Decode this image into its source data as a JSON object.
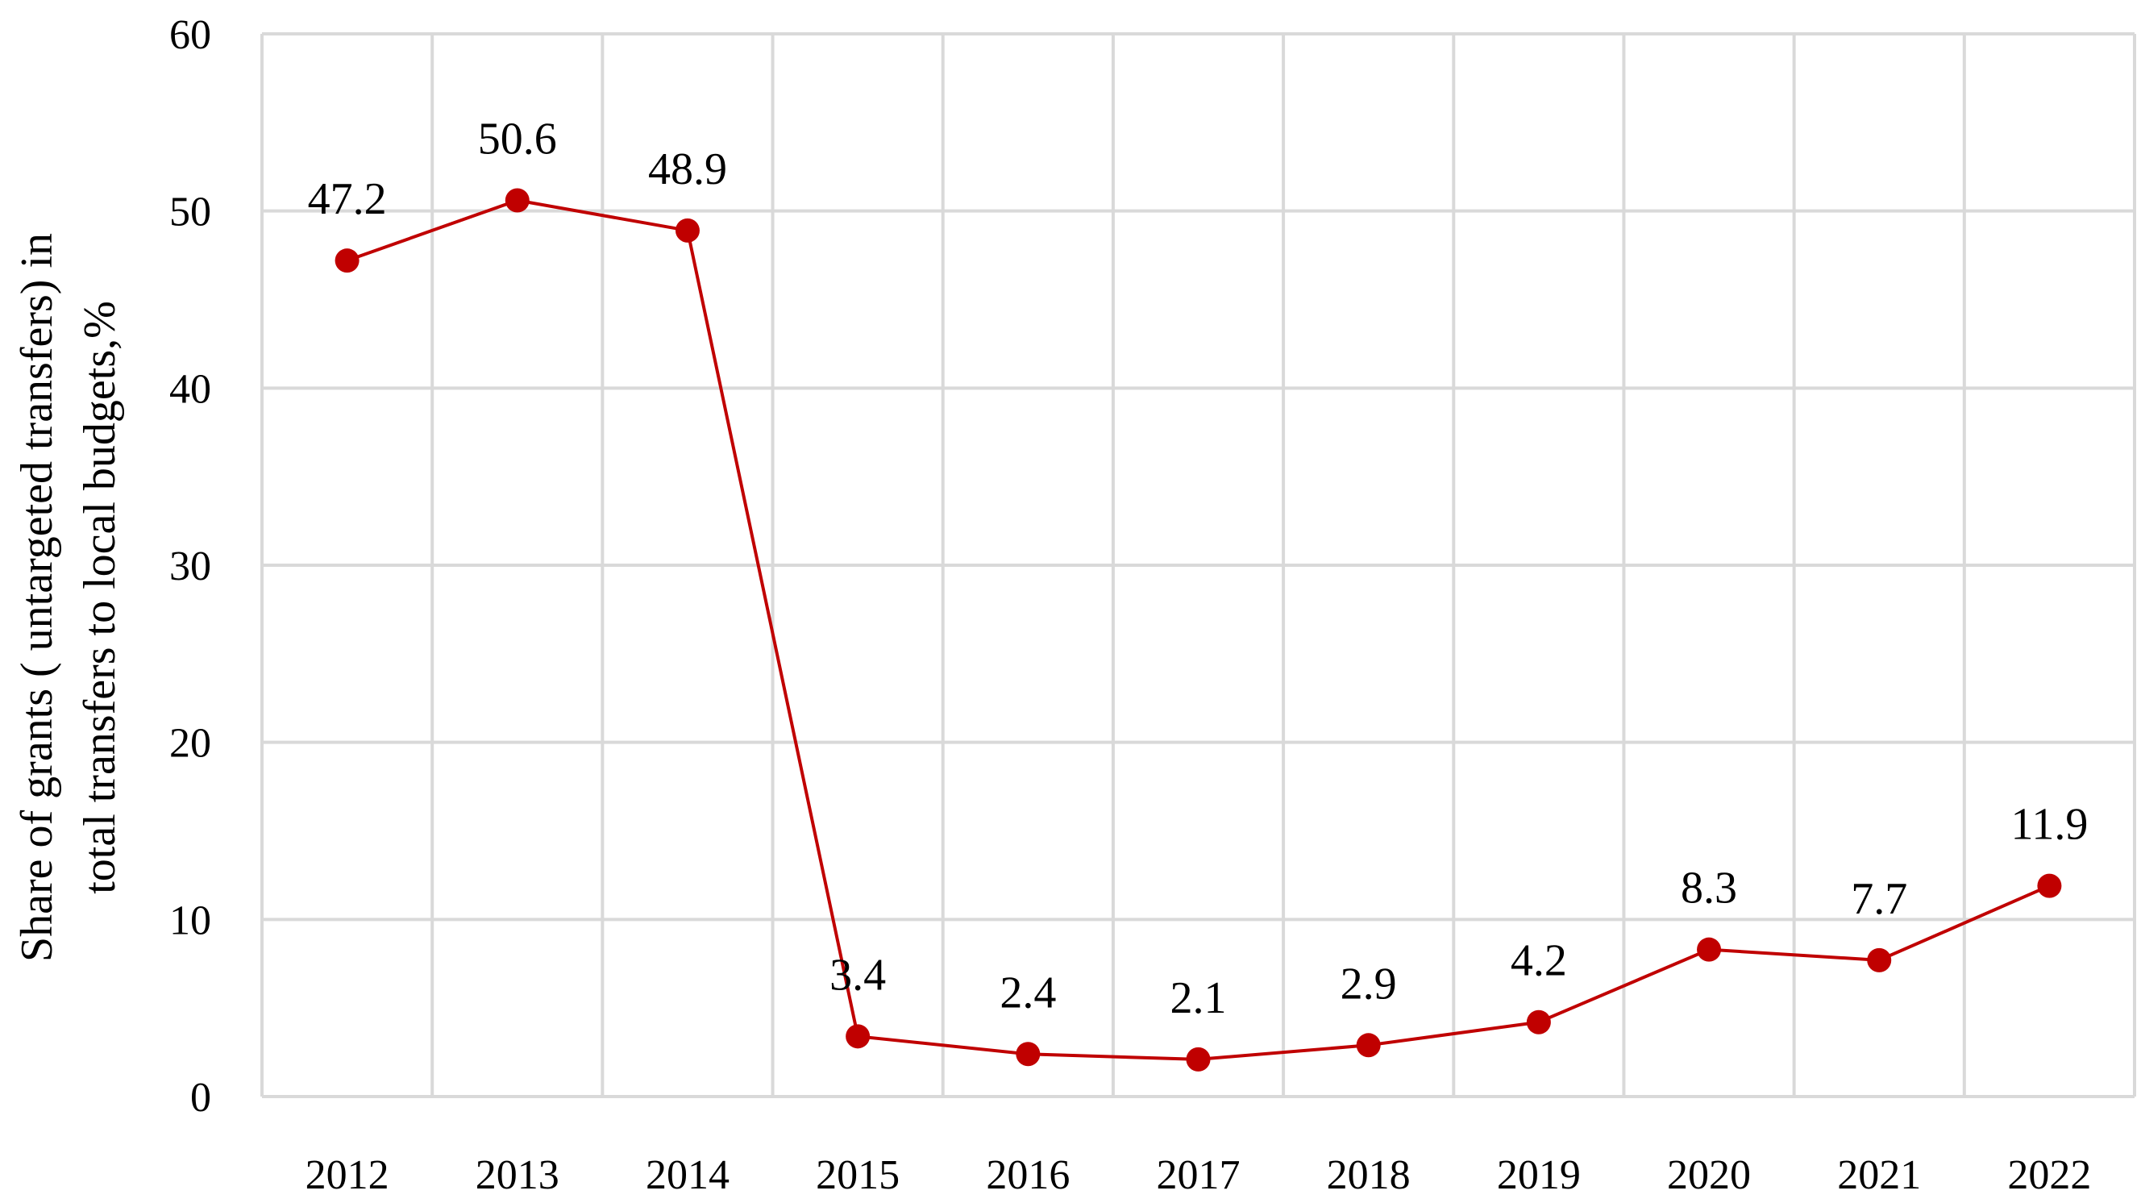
{
  "chart_data": {
    "type": "line",
    "categories": [
      "2012",
      "2013",
      "2014",
      "2015",
      "2016",
      "2017",
      "2018",
      "2019",
      "2020",
      "2021",
      "2022"
    ],
    "series": [
      {
        "values": [
          47.2,
          50.6,
          48.9,
          3.4,
          2.4,
          2.1,
          2.9,
          4.2,
          8.3,
          7.7,
          11.9
        ],
        "labels": [
          "47.2",
          "50.6",
          "48.9",
          "3.4",
          "2.4",
          "2.1",
          "2.9",
          "4.2",
          "8.3",
          "7.7",
          "11.9"
        ],
        "color": "#c00000"
      }
    ],
    "ylabel_lines": [
      "Share of grants ( untargeted transfers) in",
      "total transfers to local budgets,%"
    ],
    "xlabel": "",
    "ylim": [
      0,
      60
    ],
    "yticks": [
      0,
      10,
      20,
      30,
      40,
      50,
      60
    ],
    "grid": true,
    "legend": "none",
    "grid_color": "#d9d9d9"
  }
}
